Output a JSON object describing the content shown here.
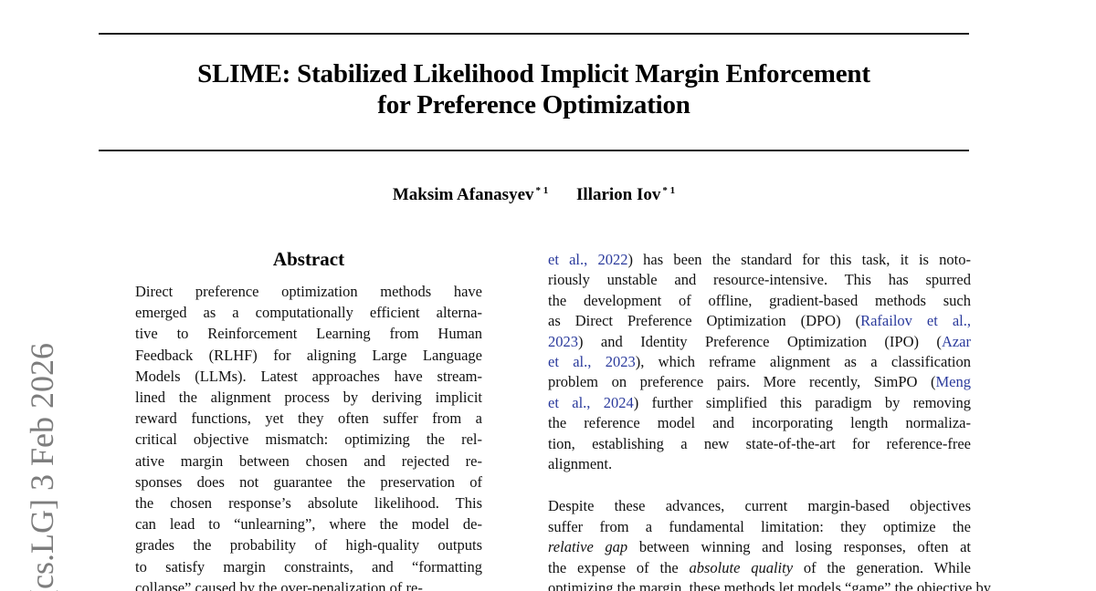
{
  "page": {
    "watermark": "[cs.LG]  3 Feb 2026",
    "title_line1": "SLIME: Stabilized Likelihood Implicit Margin Enforcement",
    "title_line2": "for Preference Optimization",
    "authors": [
      {
        "name": "Maksim Afanasyev",
        "sup": "* 1"
      },
      {
        "name": "Illarion Iov",
        "sup": "* 1"
      }
    ],
    "abstract": {
      "heading": "Abstract",
      "lines": [
        "Direct preference optimization methods have",
        "emerged as a computationally efficient alterna-",
        "tive to Reinforcement Learning from Human",
        "Feedback (RLHF) for aligning Large Language",
        "Models (LLMs). Latest approaches have stream-",
        "lined the alignment process by deriving implicit",
        "reward functions, yet they often suffer from a",
        "critical objective mismatch: optimizing the rel-",
        "ative margin between chosen and rejected re-",
        "sponses does not guarantee the preservation of",
        "the chosen response’s absolute likelihood. This",
        "can lead to “unlearning”, where the model de-",
        "grades the probability of high-quality outputs",
        "to satisfy margin constraints, and “formatting",
        "collapse” caused by the over-penalization of re-"
      ]
    },
    "right_column": {
      "para1_lines": [
        "[[et al., 2022]]) has been the standard for this task, it is noto-",
        "riously unstable and resource-intensive. This has spurred",
        "the development of offline, gradient-based methods such",
        "as Direct Preference Optimization (DPO) ([[Rafailov et al.,]]",
        "[[2023]]) and Identity Preference Optimization (IPO) ([[Azar]]",
        "[[et al., 2023]]), which reframe alignment as a classification",
        "problem on preference pairs. More recently, SimPO ([[Meng]]",
        "[[et al., 2024]]) further simplified this paradigm by removing",
        "the reference model and incorporating length normaliza-",
        "tion, establishing a new state-of-the-art for reference-free",
        "alignment."
      ],
      "para2_lines": [
        "Despite these advances, current margin-based objectives",
        "suffer from a fundamental limitation: they optimize the",
        "*relative gap* between winning and losing responses, often at",
        "the expense of the *absolute quality* of the generation. While",
        "optimizing the margin, these methods let models “game” the objective by"
      ]
    },
    "colors": {
      "citation_link": "#2a3a9c",
      "watermark_gray": "#7d7d7d",
      "text": "#111111",
      "rule": "#1c1c1c"
    }
  }
}
